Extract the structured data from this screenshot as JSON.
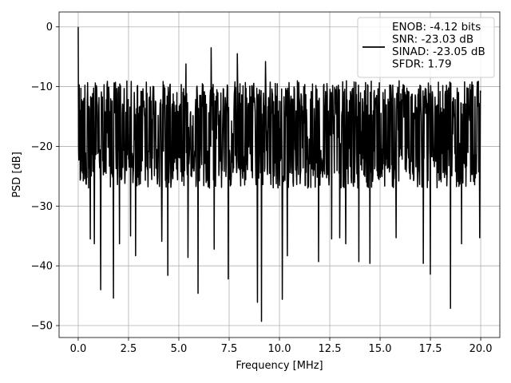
{
  "chart_data": {
    "type": "line",
    "title": "",
    "xlabel": "Frequency [MHz]",
    "ylabel": "PSD [dB]",
    "xlim": [
      -0.95,
      20.95
    ],
    "ylim": [
      -52,
      2.5
    ],
    "xticks": [
      0.0,
      2.5,
      5.0,
      7.5,
      10.0,
      12.5,
      15.0,
      17.5,
      20.0
    ],
    "xtick_labels": [
      "0.0",
      "2.5",
      "5.0",
      "7.5",
      "10.0",
      "12.5",
      "15.0",
      "17.5",
      "20.0"
    ],
    "yticks": [
      0,
      -10,
      -20,
      -30,
      -40,
      -50
    ],
    "ytick_labels": [
      "0",
      "−10",
      "−20",
      "−30",
      "−40",
      "−50"
    ],
    "grid": true,
    "legend_position": "top-right",
    "legend_lines": [
      "ENOB: -4.12 bits",
      "SNR: -23.03 dB",
      "SINAD: -23.05 dB",
      "SFDR: 1.79"
    ],
    "series": [
      {
        "color": "#000000",
        "style": "noise-floor",
        "x_range": [
          0,
          20
        ],
        "num_points": 1200,
        "peak": {
          "x": 0.0,
          "y": 0.0
        },
        "upper_envelope": -10,
        "lower_envelope": -27,
        "notable_points": [
          {
            "x": 0.0,
            "y": 0.0
          },
          {
            "x": 0.08,
            "y": -14.0
          },
          {
            "x": 0.18,
            "y": -22.0
          },
          {
            "x": 0.6,
            "y": -35.5
          },
          {
            "x": 0.8,
            "y": -36.3
          },
          {
            "x": 1.12,
            "y": -44.0
          },
          {
            "x": 1.75,
            "y": -45.4
          },
          {
            "x": 2.05,
            "y": -36.3
          },
          {
            "x": 2.6,
            "y": -35.0
          },
          {
            "x": 2.85,
            "y": -38.3
          },
          {
            "x": 4.15,
            "y": -35.9
          },
          {
            "x": 4.45,
            "y": -41.6
          },
          {
            "x": 5.35,
            "y": -6.2
          },
          {
            "x": 5.45,
            "y": -38.6
          },
          {
            "x": 5.95,
            "y": -44.6
          },
          {
            "x": 6.6,
            "y": -3.5
          },
          {
            "x": 6.75,
            "y": -37.2
          },
          {
            "x": 7.45,
            "y": -42.2
          },
          {
            "x": 7.9,
            "y": -4.5
          },
          {
            "x": 8.9,
            "y": -46.1
          },
          {
            "x": 9.1,
            "y": -49.3
          },
          {
            "x": 9.3,
            "y": -5.8
          },
          {
            "x": 10.15,
            "y": -45.6
          },
          {
            "x": 10.4,
            "y": -38.3
          },
          {
            "x": 11.95,
            "y": -39.3
          },
          {
            "x": 12.6,
            "y": -35.5
          },
          {
            "x": 13.0,
            "y": -35.3
          },
          {
            "x": 13.3,
            "y": -36.3
          },
          {
            "x": 13.95,
            "y": -39.3
          },
          {
            "x": 14.5,
            "y": -39.6
          },
          {
            "x": 15.8,
            "y": -35.3
          },
          {
            "x": 17.15,
            "y": -39.6
          },
          {
            "x": 17.5,
            "y": -41.4
          },
          {
            "x": 18.5,
            "y": -47.1
          },
          {
            "x": 19.05,
            "y": -36.3
          },
          {
            "x": 19.95,
            "y": -35.3
          },
          {
            "x": 20.0,
            "y": -11.0
          }
        ]
      }
    ]
  }
}
